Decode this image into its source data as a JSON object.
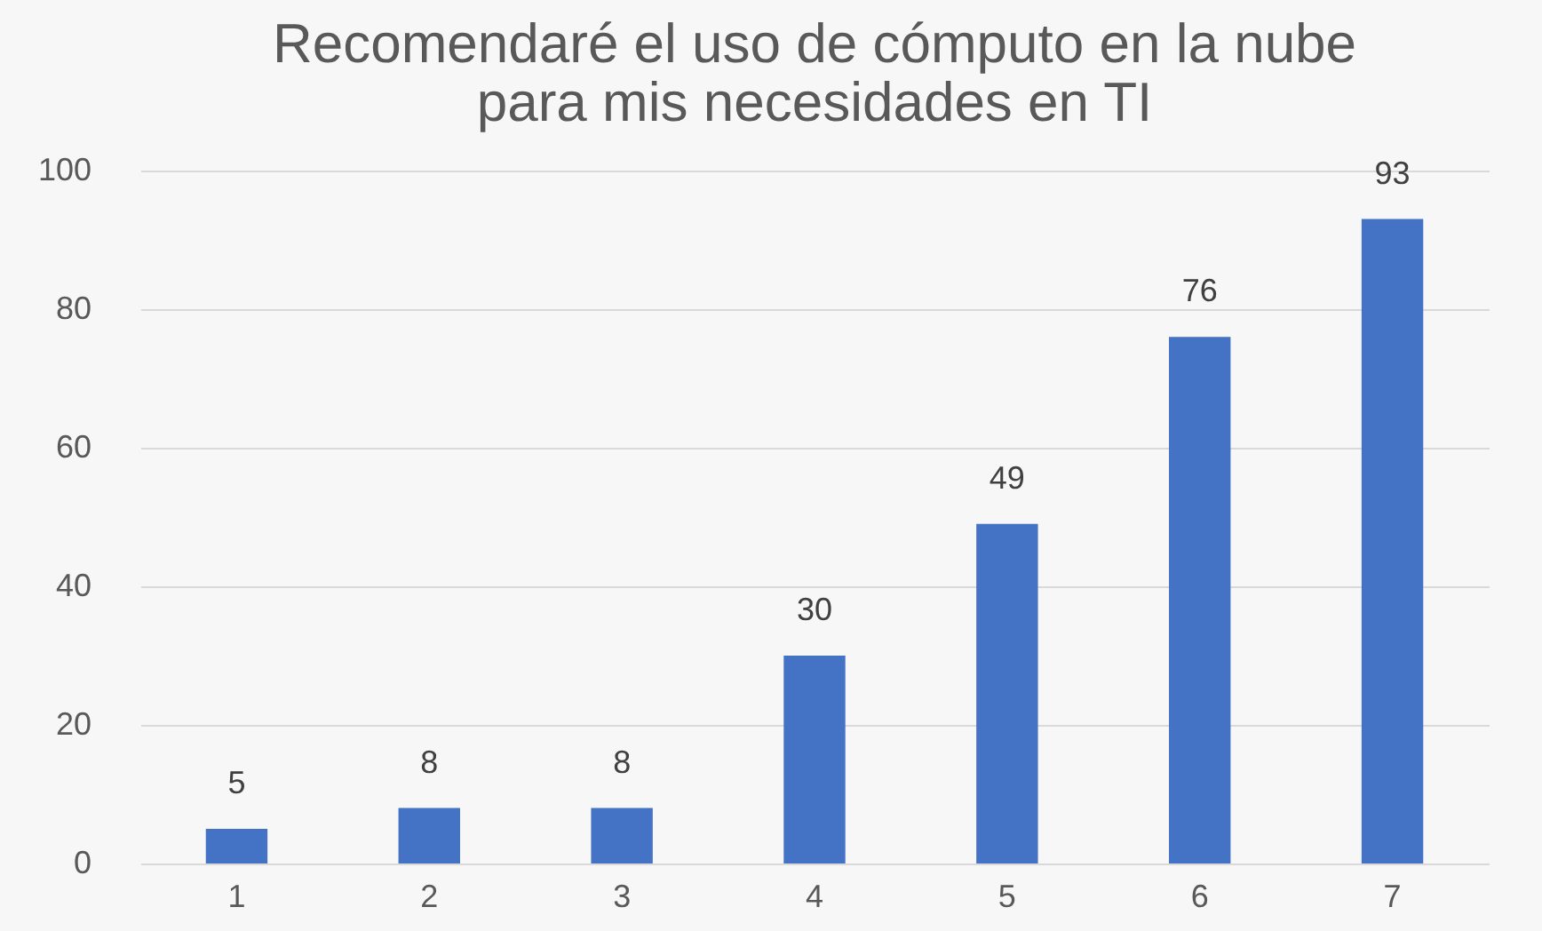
{
  "chart_data": {
    "type": "bar",
    "title": "Recomendaré el uso de cómputo en la nube para mis necesidades en TI",
    "categories": [
      "1",
      "2",
      "3",
      "4",
      "5",
      "6",
      "7"
    ],
    "values": [
      5,
      8,
      8,
      30,
      49,
      76,
      93
    ],
    "color": "#4472c4",
    "ylim": [
      0,
      100
    ],
    "yticks": [
      0,
      20,
      40,
      60,
      80,
      100
    ],
    "grid": "y",
    "data_labels": true
  }
}
